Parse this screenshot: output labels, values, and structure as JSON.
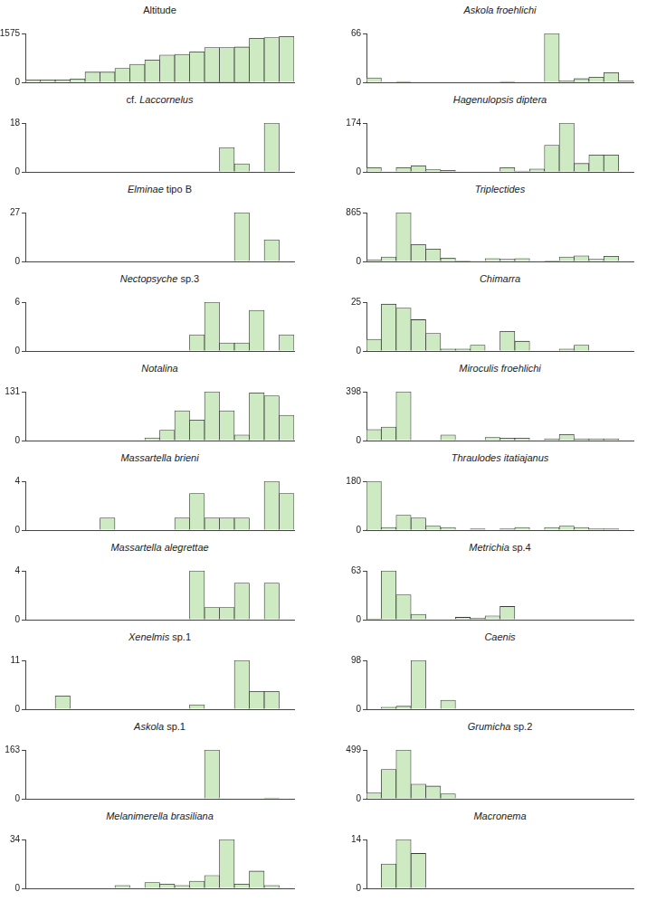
{
  "chart_data": [
    {
      "type": "bar",
      "title": "Altitude",
      "categories": [
        null,
        null,
        null,
        null,
        null,
        null,
        null,
        null,
        null,
        null,
        null,
        null,
        null,
        null,
        null,
        null,
        null,
        null
      ],
      "values": [
        80,
        80,
        80,
        110,
        330,
        330,
        450,
        580,
        720,
        880,
        900,
        980,
        1120,
        1120,
        1140,
        1420,
        1440,
        1480
      ],
      "color": "#cdeac3",
      "ylim": [
        0,
        1575
      ],
      "yticks": [
        0,
        1575
      ],
      "tick_labels": "y"
    },
    {
      "type": "bar",
      "title": "cf. Laccornelus",
      "categories": [
        null,
        null,
        null,
        null,
        null,
        null,
        null,
        null,
        null,
        null,
        null,
        null,
        null,
        null,
        null,
        null,
        null,
        null
      ],
      "values": [
        0,
        0,
        0,
        0,
        0,
        0,
        0,
        0,
        0,
        0,
        0,
        0,
        0,
        9,
        3,
        0,
        18,
        0
      ],
      "color": "#cdeac3",
      "ylim": [
        0,
        18
      ],
      "yticks": [
        0,
        18
      ],
      "tick_labels": "y"
    },
    {
      "type": "bar",
      "title": "Elminae tipo B",
      "categories": [
        null,
        null,
        null,
        null,
        null,
        null,
        null,
        null,
        null,
        null,
        null,
        null,
        null,
        null,
        null,
        null,
        null,
        null
      ],
      "values": [
        0,
        0,
        0,
        0,
        0,
        0,
        0,
        0,
        0,
        0,
        0,
        0,
        0,
        0,
        27,
        0,
        12,
        0
      ],
      "color": "#cdeac3",
      "ylim": [
        0,
        27
      ],
      "yticks": [
        0,
        27
      ],
      "tick_labels": "y"
    },
    {
      "type": "bar",
      "title": "Nectopsyche sp.3",
      "categories": [
        null,
        null,
        null,
        null,
        null,
        null,
        null,
        null,
        null,
        null,
        null,
        null,
        null,
        null,
        null,
        null,
        null,
        null
      ],
      "values": [
        0,
        0,
        0,
        0,
        0,
        0,
        0,
        0,
        0,
        0,
        0,
        2,
        6,
        1,
        1,
        5,
        0,
        2
      ],
      "color": "#cdeac3",
      "ylim": [
        0,
        6
      ],
      "yticks": [
        0,
        6
      ],
      "tick_labels": "y"
    },
    {
      "type": "bar",
      "title": "Notalina",
      "categories": [
        null,
        null,
        null,
        null,
        null,
        null,
        null,
        null,
        null,
        null,
        null,
        null,
        null,
        null,
        null,
        null,
        null,
        null
      ],
      "values": [
        0,
        0,
        0,
        0,
        0,
        0,
        0,
        0,
        7,
        28,
        80,
        55,
        131,
        80,
        15,
        128,
        120,
        68
      ],
      "color": "#cdeac3",
      "ylim": [
        0,
        131
      ],
      "yticks": [
        0,
        131
      ],
      "tick_labels": "y"
    },
    {
      "type": "bar",
      "title": "Massartella brieni",
      "categories": [
        null,
        null,
        null,
        null,
        null,
        null,
        null,
        null,
        null,
        null,
        null,
        null,
        null,
        null,
        null,
        null,
        null,
        null
      ],
      "values": [
        0,
        0,
        0,
        0,
        0,
        1,
        0,
        0,
        0,
        0,
        1,
        3,
        1,
        1,
        1,
        0,
        4,
        3
      ],
      "color": "#cdeac3",
      "ylim": [
        0,
        4
      ],
      "yticks": [
        0,
        4
      ],
      "tick_labels": "y"
    },
    {
      "type": "bar",
      "title": "Massartella alegrettae",
      "categories": [
        null,
        null,
        null,
        null,
        null,
        null,
        null,
        null,
        null,
        null,
        null,
        null,
        null,
        null,
        null,
        null,
        null,
        null
      ],
      "values": [
        0,
        0,
        0,
        0,
        0,
        0,
        0,
        0,
        0,
        0,
        0,
        4,
        1,
        1,
        3,
        0,
        3,
        0
      ],
      "color": "#cdeac3",
      "ylim": [
        0,
        4
      ],
      "yticks": [
        0,
        4
      ],
      "tick_labels": "y"
    },
    {
      "type": "bar",
      "title": "Xenelmis sp.1",
      "categories": [
        null,
        null,
        null,
        null,
        null,
        null,
        null,
        null,
        null,
        null,
        null,
        null,
        null,
        null,
        null,
        null,
        null,
        null
      ],
      "values": [
        0,
        0,
        3,
        0,
        0,
        0,
        0,
        0,
        0,
        0,
        0,
        1,
        0,
        0,
        11,
        4,
        4,
        0
      ],
      "color": "#cdeac3",
      "ylim": [
        0,
        11
      ],
      "yticks": [
        0,
        11
      ],
      "tick_labels": "y"
    },
    {
      "type": "bar",
      "title": "Askola sp.1",
      "categories": [
        null,
        null,
        null,
        null,
        null,
        null,
        null,
        null,
        null,
        null,
        null,
        null,
        null,
        null,
        null,
        null,
        null,
        null
      ],
      "values": [
        0,
        0,
        0,
        0,
        0,
        0,
        0,
        0,
        0,
        0,
        0,
        0,
        163,
        0,
        0,
        0,
        3,
        0
      ],
      "color": "#cdeac3",
      "ylim": [
        0,
        163
      ],
      "yticks": [
        0,
        163
      ],
      "tick_labels": "y"
    },
    {
      "type": "bar",
      "title": "Melanimerella brasiliana",
      "categories": [
        null,
        null,
        null,
        null,
        null,
        null,
        null,
        null,
        null,
        null,
        null,
        null,
        null,
        null,
        null,
        null,
        null,
        null
      ],
      "values": [
        0,
        0,
        0,
        0,
        0,
        0,
        2,
        0,
        4,
        3,
        2,
        5,
        9,
        34,
        3,
        12,
        2,
        0
      ],
      "color": "#cdeac3",
      "ylim": [
        0,
        34
      ],
      "yticks": [
        0,
        34
      ],
      "tick_labels": "y"
    },
    {
      "type": "bar",
      "title": "Askola froehlichi",
      "categories": [
        null,
        null,
        null,
        null,
        null,
        null,
        null,
        null,
        null,
        null,
        null,
        null,
        null,
        null,
        null,
        null,
        null,
        null
      ],
      "values": [
        6,
        0,
        1,
        0,
        0,
        0,
        0,
        0,
        0,
        1,
        0,
        0,
        66,
        2,
        5,
        7,
        13,
        2
      ],
      "color": "#cdeac3",
      "ylim": [
        0,
        66
      ],
      "yticks": [
        0,
        66
      ],
      "tick_labels": "y"
    },
    {
      "type": "bar",
      "title": "Hagenulopsis diptera",
      "categories": [
        null,
        null,
        null,
        null,
        null,
        null,
        null,
        null,
        null,
        null,
        null,
        null,
        null,
        null,
        null,
        null,
        null,
        null
      ],
      "values": [
        15,
        0,
        15,
        22,
        8,
        5,
        0,
        0,
        0,
        15,
        3,
        10,
        95,
        174,
        30,
        60,
        60,
        0
      ],
      "color": "#cdeac3",
      "ylim": [
        0,
        174
      ],
      "yticks": [
        0,
        174
      ],
      "tick_labels": "y"
    },
    {
      "type": "bar",
      "title": "Triplectides",
      "categories": [
        null,
        null,
        null,
        null,
        null,
        null,
        null,
        null,
        null,
        null,
        null,
        null,
        null,
        null,
        null,
        null,
        null,
        null
      ],
      "values": [
        30,
        80,
        865,
        300,
        220,
        60,
        10,
        0,
        50,
        40,
        50,
        0,
        10,
        80,
        100,
        40,
        90,
        0
      ],
      "color": "#cdeac3",
      "ylim": [
        0,
        865
      ],
      "yticks": [
        0,
        865
      ],
      "tick_labels": "y"
    },
    {
      "type": "bar",
      "title": "Chimarra",
      "categories": [
        null,
        null,
        null,
        null,
        null,
        null,
        null,
        null,
        null,
        null,
        null,
        null,
        null,
        null,
        null,
        null,
        null,
        null
      ],
      "values": [
        6,
        24,
        22,
        16,
        9,
        1,
        1,
        3,
        0,
        10,
        5,
        0,
        0,
        1,
        3,
        0,
        0,
        0
      ],
      "color": "#cdeac3",
      "ylim": [
        0,
        25
      ],
      "yticks": [
        0,
        25
      ],
      "tick_labels": "y"
    },
    {
      "type": "bar",
      "title": "Miroculis froehlichi",
      "categories": [
        null,
        null,
        null,
        null,
        null,
        null,
        null,
        null,
        null,
        null,
        null,
        null,
        null,
        null,
        null,
        null,
        null,
        null
      ],
      "values": [
        90,
        110,
        398,
        0,
        0,
        45,
        0,
        0,
        25,
        20,
        20,
        0,
        15,
        50,
        15,
        15,
        15,
        0
      ],
      "color": "#cdeac3",
      "ylim": [
        0,
        398
      ],
      "yticks": [
        0,
        398
      ],
      "tick_labels": "y"
    },
    {
      "type": "bar",
      "title": "Thraulodes itatiajanus",
      "categories": [
        null,
        null,
        null,
        null,
        null,
        null,
        null,
        null,
        null,
        null,
        null,
        null,
        null,
        null,
        null,
        null,
        null,
        null
      ],
      "values": [
        180,
        10,
        55,
        45,
        15,
        10,
        0,
        5,
        0,
        5,
        10,
        0,
        10,
        15,
        10,
        5,
        5,
        0
      ],
      "color": "#cdeac3",
      "ylim": [
        0,
        180
      ],
      "yticks": [
        0,
        180
      ],
      "tick_labels": "y"
    },
    {
      "type": "bar",
      "title": "Metrichia sp.4",
      "categories": [
        null,
        null,
        null,
        null,
        null,
        null,
        null,
        null,
        null,
        null,
        null,
        null,
        null,
        null,
        null,
        null,
        null,
        null
      ],
      "values": [
        1,
        63,
        32,
        7,
        0,
        0,
        3,
        2,
        5,
        17,
        0,
        0,
        0,
        0,
        0,
        0,
        0,
        0
      ],
      "color": "#cdeac3",
      "ylim": [
        0,
        63
      ],
      "yticks": [
        0,
        63
      ],
      "tick_labels": "y"
    },
    {
      "type": "bar",
      "title": "Caenis",
      "categories": [
        null,
        null,
        null,
        null,
        null,
        null,
        null,
        null,
        null,
        null,
        null,
        null,
        null,
        null,
        null,
        null,
        null,
        null
      ],
      "values": [
        0,
        4,
        6,
        98,
        0,
        18,
        0,
        0,
        0,
        0,
        0,
        0,
        0,
        0,
        0,
        0,
        0,
        0
      ],
      "color": "#cdeac3",
      "ylim": [
        0,
        98
      ],
      "yticks": [
        0,
        98
      ],
      "tick_labels": "y"
    },
    {
      "type": "bar",
      "title": "Grumicha sp.2",
      "categories": [
        null,
        null,
        null,
        null,
        null,
        null,
        null,
        null,
        null,
        null,
        null,
        null,
        null,
        null,
        null,
        null,
        null,
        null
      ],
      "values": [
        60,
        300,
        499,
        150,
        130,
        50,
        0,
        0,
        0,
        0,
        0,
        0,
        0,
        0,
        0,
        0,
        0,
        0
      ],
      "color": "#cdeac3",
      "ylim": [
        0,
        499
      ],
      "yticks": [
        0,
        499
      ],
      "tick_labels": "y"
    },
    {
      "type": "bar",
      "title": "Macronema",
      "categories": [
        null,
        null,
        null,
        null,
        null,
        null,
        null,
        null,
        null,
        null,
        null,
        null,
        null,
        null,
        null,
        null,
        null,
        null
      ],
      "values": [
        0,
        7,
        14,
        10,
        0,
        0,
        0,
        0,
        0,
        0,
        0,
        0,
        0,
        0,
        0,
        0,
        0,
        0
      ],
      "color": "#cdeac3",
      "ylim": [
        0,
        14
      ],
      "yticks": [
        0,
        14
      ],
      "tick_labels": "y"
    }
  ]
}
